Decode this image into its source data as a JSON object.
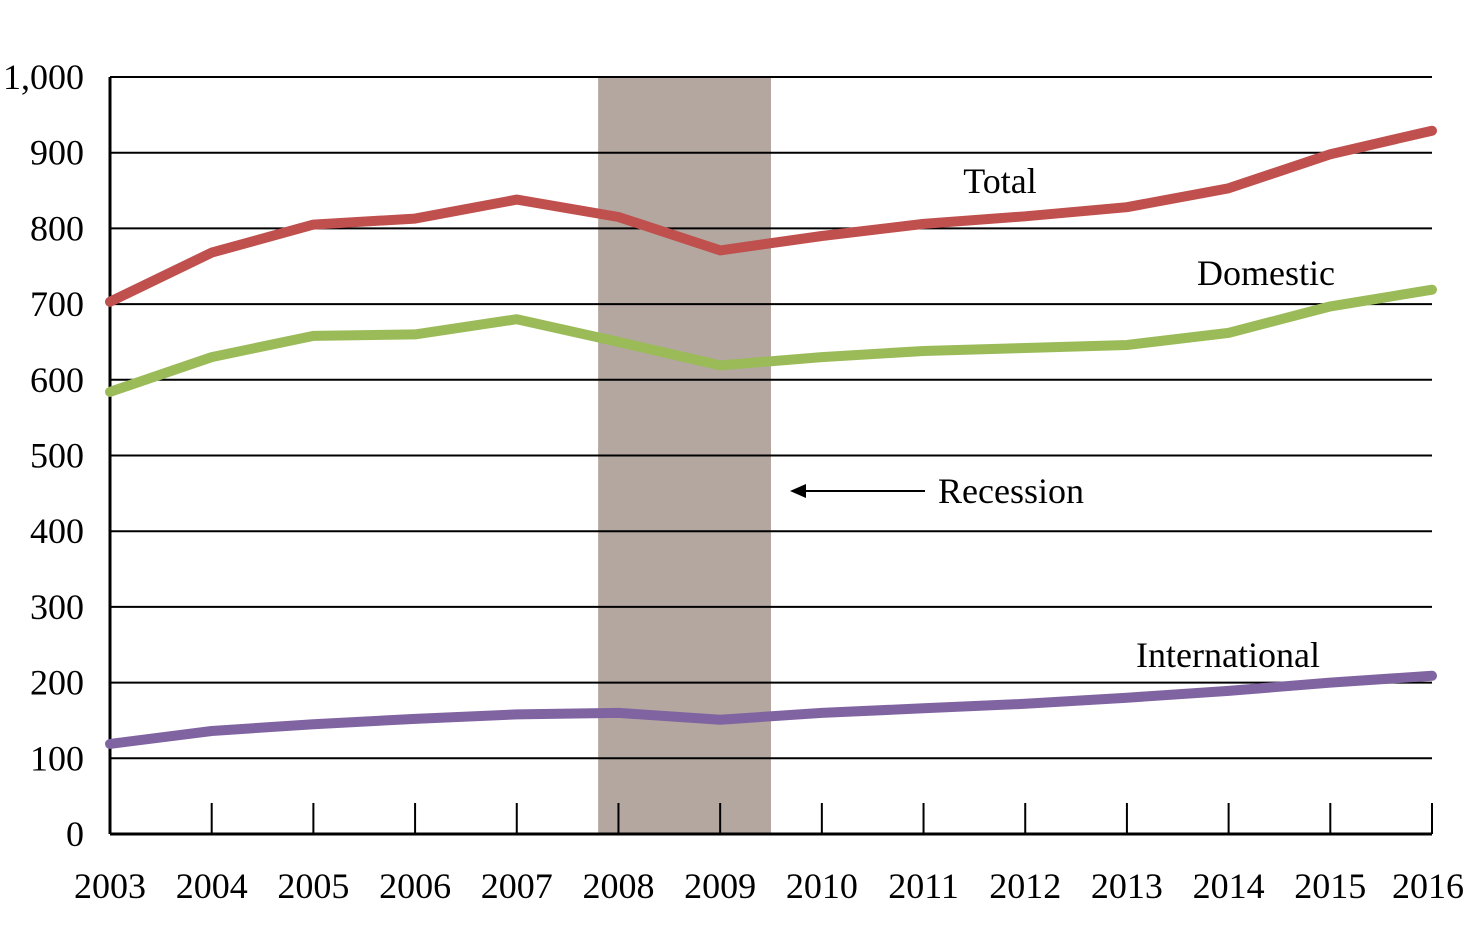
{
  "chart_data": {
    "type": "line",
    "x": [
      "2003",
      "2004",
      "2005",
      "2006",
      "2007",
      "2008",
      "2009",
      "2010",
      "2011",
      "2012",
      "2013",
      "2014",
      "2015",
      "2016"
    ],
    "ylim": [
      0,
      1000
    ],
    "yticks": [
      "0",
      "100",
      "200",
      "300",
      "400",
      "500",
      "600",
      "700",
      "800",
      "900",
      "1,000"
    ],
    "grid": true,
    "series": [
      {
        "name": "Total",
        "color": "#c0504d",
        "values": [
          703,
          768,
          805,
          813,
          838,
          815,
          771,
          790,
          806,
          816,
          828,
          853,
          898,
          929
        ]
      },
      {
        "name": "Domestic",
        "color": "#9bbb59",
        "values": [
          584,
          630,
          658,
          660,
          680,
          650,
          619,
          630,
          638,
          642,
          646,
          662,
          697,
          719
        ]
      },
      {
        "name": "International",
        "color": "#8064a2",
        "values": [
          119,
          136,
          145,
          152,
          158,
          160,
          151,
          160,
          166,
          172,
          180,
          189,
          200,
          209
        ]
      }
    ],
    "recession": {
      "label": "Recession",
      "start": 2007.8,
      "end": 2009.5,
      "color": "#b3a79f"
    }
  }
}
